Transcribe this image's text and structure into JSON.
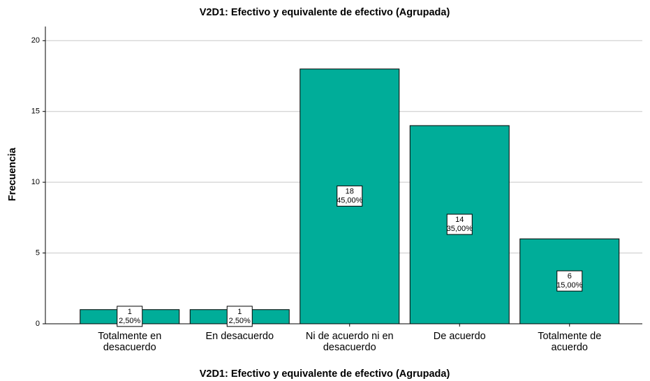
{
  "chart_data": {
    "type": "bar",
    "title": "V2D1: Efectivo y equivalente de efectivo (Agrupada)",
    "x_label": "V2D1: Efectivo y equivalente de efectivo (Agrupada)",
    "y_label": "Frecuencia",
    "categories": [
      "Totalmente en desacuerdo",
      "En desacuerdo",
      "Ni de acuerdo ni en desacuerdo",
      "De acuerdo",
      "Totalmente de acuerdo"
    ],
    "values": [
      1,
      1,
      18,
      14,
      6
    ],
    "percent_values": [
      2.5,
      2.5,
      45,
      35,
      15
    ],
    "percent_labels": [
      "2,50%",
      "2,50%",
      "45,00%",
      "35,00%",
      "15,00%"
    ],
    "color": "#00ad99",
    "ylim": [
      0,
      21
    ],
    "yticks": [
      0,
      5,
      10,
      15,
      20
    ],
    "grid": true
  }
}
